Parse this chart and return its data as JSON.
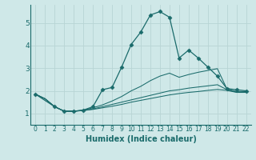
{
  "xlabel": "Humidex (Indice chaleur)",
  "background_color": "#cfe8e8",
  "grid_color": "#b8d4d4",
  "line_color": "#1a6b6b",
  "xlim": [
    -0.5,
    22.5
  ],
  "ylim": [
    0.5,
    5.8
  ],
  "yticks": [
    1,
    2,
    3,
    4,
    5
  ],
  "xticks": [
    0,
    1,
    2,
    3,
    4,
    5,
    6,
    7,
    8,
    9,
    10,
    11,
    12,
    13,
    14,
    15,
    16,
    17,
    18,
    19,
    20,
    21,
    22
  ],
  "series": [
    {
      "x": [
        0,
        1,
        2,
        3,
        4,
        5,
        6,
        7,
        8,
        9,
        10,
        11,
        12,
        13,
        14,
        15,
        16,
        17,
        18,
        19,
        20,
        21,
        22
      ],
      "y": [
        1.85,
        1.65,
        1.3,
        1.1,
        1.1,
        1.13,
        1.18,
        1.25,
        1.32,
        1.4,
        1.5,
        1.58,
        1.66,
        1.74,
        1.82,
        1.88,
        1.93,
        1.97,
        2.02,
        2.06,
        2.02,
        1.93,
        1.93
      ],
      "marker": false
    },
    {
      "x": [
        0,
        1,
        2,
        3,
        4,
        5,
        6,
        7,
        8,
        9,
        10,
        11,
        12,
        13,
        14,
        15,
        16,
        17,
        18,
        19,
        20,
        21,
        22
      ],
      "y": [
        1.85,
        1.65,
        1.3,
        1.1,
        1.1,
        1.13,
        1.2,
        1.3,
        1.4,
        1.5,
        1.6,
        1.7,
        1.8,
        1.9,
        2.0,
        2.05,
        2.12,
        2.17,
        2.22,
        2.27,
        2.05,
        1.95,
        1.95
      ],
      "marker": false
    },
    {
      "x": [
        0,
        1,
        2,
        3,
        4,
        5,
        6,
        7,
        8,
        9,
        10,
        11,
        12,
        13,
        14,
        15,
        16,
        17,
        18,
        19,
        20,
        21,
        22
      ],
      "y": [
        1.85,
        1.65,
        1.3,
        1.1,
        1.1,
        1.15,
        1.25,
        1.38,
        1.55,
        1.75,
        2.0,
        2.2,
        2.45,
        2.65,
        2.78,
        2.6,
        2.72,
        2.82,
        2.9,
        2.98,
        2.08,
        1.97,
        1.97
      ],
      "marker": false
    },
    {
      "x": [
        0,
        2,
        3,
        4,
        5,
        6,
        7,
        8,
        9,
        10,
        11,
        12,
        13,
        14,
        15,
        16,
        17,
        18,
        19,
        20,
        21,
        22
      ],
      "y": [
        1.85,
        1.3,
        1.1,
        1.1,
        1.15,
        1.3,
        2.05,
        2.15,
        3.05,
        4.05,
        4.6,
        5.35,
        5.5,
        5.25,
        3.45,
        3.8,
        3.45,
        3.05,
        2.65,
        2.1,
        2.05,
        2.0
      ],
      "marker": true
    }
  ]
}
